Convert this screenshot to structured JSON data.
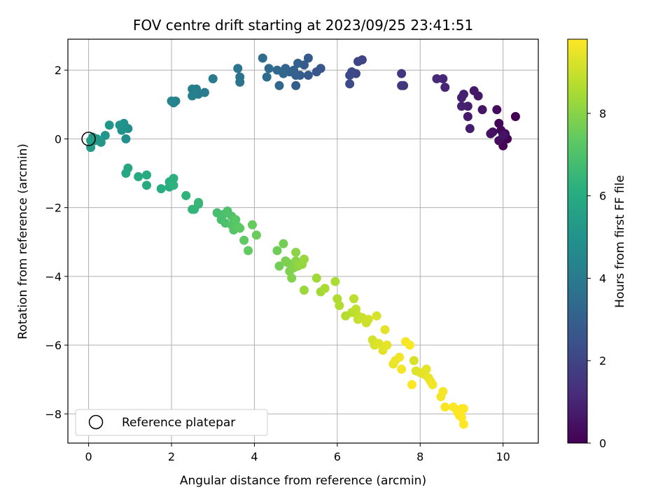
{
  "chart_data": {
    "type": "scatter",
    "title": "FOV centre drift starting at 2023/09/25 23:41:51",
    "xlabel": "Angular distance from reference (arcmin)",
    "ylabel": "Rotation from reference (arcmin)",
    "xlim": [
      -0.5,
      10.85
    ],
    "ylim": [
      -8.85,
      2.9
    ],
    "xticks": [
      0,
      2,
      4,
      6,
      8,
      10
    ],
    "xtick_labels": [
      "0",
      "2",
      "4",
      "6",
      "8",
      "10"
    ],
    "yticks": [
      -8,
      -6,
      -4,
      -2,
      0,
      2
    ],
    "ytick_labels": [
      "−8",
      "−6",
      "−4",
      "−2",
      "0",
      "2"
    ],
    "grid": true,
    "legend_position": "lower-left",
    "colormap": "viridis",
    "colorbar": {
      "label": "Hours from first FF file",
      "range": [
        0,
        9.8
      ],
      "ticks": [
        0,
        2,
        4,
        6,
        8
      ],
      "tick_labels": [
        "0",
        "2",
        "4",
        "6",
        "8"
      ]
    },
    "reference": {
      "x": 0,
      "y": 0,
      "label": "Reference platepar"
    },
    "points": [
      [
        10.3,
        0.65,
        0.0
      ],
      [
        10.1,
        0.0,
        0.05
      ],
      [
        10.0,
        -0.2,
        0.1
      ],
      [
        9.9,
        0.45,
        0.15
      ],
      [
        9.95,
        0.25,
        0.2
      ],
      [
        10.05,
        0.15,
        0.25
      ],
      [
        9.85,
        0.85,
        0.3
      ],
      [
        9.9,
        -0.05,
        0.35
      ],
      [
        9.75,
        0.2,
        0.4
      ],
      [
        9.7,
        0.15,
        0.45
      ],
      [
        10.0,
        0.1,
        0.5
      ],
      [
        9.5,
        0.85,
        0.55
      ],
      [
        9.4,
        1.25,
        0.6
      ],
      [
        9.3,
        1.4,
        0.65
      ],
      [
        9.15,
        0.65,
        0.7
      ],
      [
        9.2,
        0.3,
        0.75
      ],
      [
        9.15,
        0.95,
        0.8
      ],
      [
        9.05,
        1.3,
        0.85
      ],
      [
        9.0,
        1.2,
        0.9
      ],
      [
        9.0,
        0.95,
        0.95
      ],
      [
        8.6,
        1.5,
        1.0
      ],
      [
        8.55,
        1.75,
        1.05
      ],
      [
        8.4,
        1.75,
        1.1
      ],
      [
        7.6,
        1.55,
        1.5
      ],
      [
        7.55,
        1.55,
        1.55
      ],
      [
        7.55,
        1.9,
        1.6
      ],
      [
        6.6,
        2.3,
        2.0
      ],
      [
        6.5,
        2.25,
        2.05
      ],
      [
        6.45,
        1.9,
        2.1
      ],
      [
        6.35,
        1.95,
        2.15
      ],
      [
        6.3,
        1.85,
        2.2
      ],
      [
        6.3,
        1.6,
        2.25
      ],
      [
        5.6,
        2.05,
        2.6
      ],
      [
        5.5,
        1.95,
        2.65
      ],
      [
        5.3,
        1.85,
        2.7
      ],
      [
        5.3,
        2.35,
        2.75
      ],
      [
        5.2,
        2.15,
        2.8
      ],
      [
        5.1,
        1.85,
        2.85
      ],
      [
        5.0,
        1.55,
        2.9
      ],
      [
        5.0,
        1.85,
        2.95
      ],
      [
        5.05,
        2.2,
        3.0
      ],
      [
        4.95,
        2.0,
        3.05
      ],
      [
        4.85,
        1.95,
        3.1
      ],
      [
        4.75,
        2.05,
        3.15
      ],
      [
        4.7,
        1.9,
        3.2
      ],
      [
        4.6,
        1.55,
        3.25
      ],
      [
        4.55,
        2.0,
        3.3
      ],
      [
        4.35,
        2.05,
        3.35
      ],
      [
        4.3,
        1.8,
        3.4
      ],
      [
        4.2,
        2.35,
        3.45
      ],
      [
        3.65,
        1.65,
        3.7
      ],
      [
        3.65,
        1.8,
        3.75
      ],
      [
        3.6,
        2.05,
        3.8
      ],
      [
        3.0,
        1.75,
        4.0
      ],
      [
        2.8,
        1.35,
        4.05
      ],
      [
        2.65,
        1.3,
        4.1
      ],
      [
        2.6,
        1.45,
        4.15
      ],
      [
        2.5,
        1.45,
        4.2
      ],
      [
        2.5,
        1.25,
        4.25
      ],
      [
        2.1,
        1.1,
        4.3
      ],
      [
        2.05,
        1.05,
        4.35
      ],
      [
        2.0,
        1.1,
        4.4
      ],
      [
        0.95,
        0.3,
        4.8
      ],
      [
        0.9,
        0.0,
        4.85
      ],
      [
        0.85,
        0.45,
        4.9
      ],
      [
        0.8,
        0.25,
        4.95
      ],
      [
        0.75,
        0.4,
        5.0
      ],
      [
        0.5,
        0.4,
        5.05
      ],
      [
        0.4,
        0.1,
        5.1
      ],
      [
        0.3,
        -0.1,
        5.15
      ],
      [
        0.2,
        0.0,
        5.2
      ],
      [
        0.15,
        -0.05,
        5.25
      ],
      [
        0.1,
        0.05,
        5.3
      ],
      [
        0.05,
        -0.25,
        5.35
      ],
      [
        0.05,
        -0.05,
        5.4
      ],
      [
        0.95,
        -0.85,
        5.8
      ],
      [
        0.9,
        -1.0,
        5.85
      ],
      [
        1.2,
        -1.1,
        5.9
      ],
      [
        1.4,
        -1.35,
        5.95
      ],
      [
        1.4,
        -1.05,
        6.0
      ],
      [
        1.75,
        -1.45,
        6.05
      ],
      [
        1.95,
        -1.4,
        6.1
      ],
      [
        1.95,
        -1.25,
        6.15
      ],
      [
        2.05,
        -1.15,
        6.2
      ],
      [
        2.05,
        -1.35,
        6.25
      ],
      [
        2.35,
        -1.65,
        6.3
      ],
      [
        2.5,
        -2.05,
        6.35
      ],
      [
        2.55,
        -2.05,
        6.4
      ],
      [
        2.65,
        -1.9,
        6.45
      ],
      [
        2.65,
        -1.85,
        6.5
      ],
      [
        3.1,
        -2.15,
        6.8
      ],
      [
        3.2,
        -2.35,
        6.85
      ],
      [
        3.25,
        -2.2,
        6.9
      ],
      [
        3.3,
        -2.45,
        6.95
      ],
      [
        3.35,
        -2.1,
        7.0
      ],
      [
        3.45,
        -2.25,
        7.05
      ],
      [
        3.45,
        -2.5,
        7.1
      ],
      [
        3.5,
        -2.65,
        7.15
      ],
      [
        3.55,
        -2.35,
        7.2
      ],
      [
        3.6,
        -2.55,
        7.25
      ],
      [
        3.65,
        -2.6,
        7.3
      ],
      [
        3.75,
        -2.95,
        7.35
      ],
      [
        3.85,
        -3.25,
        7.4
      ],
      [
        3.95,
        -2.5,
        7.45
      ],
      [
        4.05,
        -2.8,
        7.5
      ],
      [
        4.55,
        -3.25,
        7.6
      ],
      [
        4.6,
        -3.7,
        7.65
      ],
      [
        4.7,
        -3.05,
        7.7
      ],
      [
        4.75,
        -3.55,
        7.75
      ],
      [
        4.8,
        -3.6,
        7.8
      ],
      [
        4.85,
        -3.85,
        7.85
      ],
      [
        4.9,
        -4.05,
        7.9
      ],
      [
        4.95,
        -3.75,
        7.95
      ],
      [
        5.0,
        -3.55,
        8.0
      ],
      [
        5.0,
        -3.3,
        8.05
      ],
      [
        5.05,
        -3.7,
        8.1
      ],
      [
        5.1,
        -3.65,
        8.15
      ],
      [
        5.15,
        -3.65,
        8.2
      ],
      [
        5.2,
        -3.5,
        8.25
      ],
      [
        5.2,
        -4.4,
        8.3
      ],
      [
        5.5,
        -4.05,
        8.35
      ],
      [
        5.6,
        -4.45,
        8.4
      ],
      [
        5.7,
        -4.35,
        8.5
      ],
      [
        5.95,
        -4.15,
        8.55
      ],
      [
        6.0,
        -4.65,
        8.6
      ],
      [
        6.05,
        -4.85,
        8.65
      ],
      [
        6.2,
        -5.15,
        8.7
      ],
      [
        6.35,
        -5.05,
        8.75
      ],
      [
        6.4,
        -4.65,
        8.8
      ],
      [
        6.45,
        -4.95,
        8.85
      ],
      [
        6.5,
        -5.15,
        8.9
      ],
      [
        6.5,
        -5.25,
        8.95
      ],
      [
        6.6,
        -5.2,
        9.0
      ],
      [
        6.7,
        -5.35,
        9.05
      ],
      [
        6.75,
        -5.25,
        9.1
      ],
      [
        6.85,
        -5.85,
        9.15
      ],
      [
        6.9,
        -6.0,
        9.2
      ],
      [
        6.95,
        -5.15,
        9.25
      ],
      [
        7.0,
        -5.95,
        9.3
      ],
      [
        7.1,
        -6.15,
        9.35
      ],
      [
        7.15,
        -5.55,
        9.4
      ],
      [
        7.2,
        -6.0,
        9.45
      ],
      [
        7.35,
        -6.55,
        9.5
      ],
      [
        7.4,
        -6.45,
        9.55
      ],
      [
        7.5,
        -6.35,
        9.6
      ],
      [
        7.55,
        -6.7,
        9.65
      ],
      [
        7.65,
        -5.9,
        9.7
      ],
      [
        7.75,
        -6.0,
        9.75
      ],
      [
        7.8,
        -7.15,
        9.8
      ],
      [
        7.85,
        -6.45,
        9.2
      ],
      [
        7.9,
        -6.75,
        9.3
      ],
      [
        8.0,
        -6.8,
        9.35
      ],
      [
        8.1,
        -6.85,
        9.4
      ],
      [
        8.15,
        -6.7,
        9.45
      ],
      [
        8.2,
        -6.95,
        9.5
      ],
      [
        8.25,
        -7.05,
        9.55
      ],
      [
        8.3,
        -7.15,
        9.6
      ],
      [
        8.5,
        -7.5,
        9.65
      ],
      [
        8.55,
        -7.35,
        9.7
      ],
      [
        8.6,
        -7.8,
        9.72
      ],
      [
        8.8,
        -7.8,
        9.75
      ],
      [
        8.9,
        -7.95,
        9.77
      ],
      [
        8.95,
        -8.05,
        9.79
      ],
      [
        9.0,
        -7.85,
        9.8
      ],
      [
        9.05,
        -8.3,
        9.8
      ],
      [
        9.05,
        -7.85,
        9.8
      ],
      [
        9.0,
        -8.1,
        9.8
      ]
    ]
  }
}
